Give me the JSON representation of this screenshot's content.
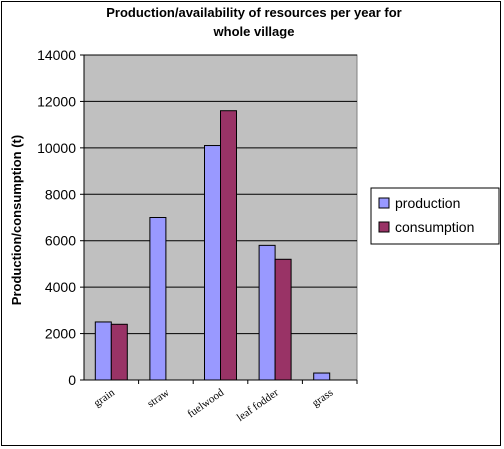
{
  "chart_data": {
    "type": "bar",
    "title_line1": "Production/availability of resources per year for",
    "title_line2": "whole village",
    "ylabel": "Production/consumption (t)",
    "xlabel": "",
    "categories": [
      "grain",
      "straw",
      "fuelwood",
      "leaf fodder",
      "grass"
    ],
    "series": [
      {
        "name": "production",
        "color": "#9999ff",
        "values": [
          2500,
          7000,
          10100,
          5800,
          300
        ]
      },
      {
        "name": "consumption",
        "color": "#993366",
        "values": [
          2400,
          0,
          11600,
          5200,
          0
        ]
      }
    ],
    "ylim": [
      0,
      14000
    ],
    "yticks": [
      0,
      2000,
      4000,
      6000,
      8000,
      10000,
      12000,
      14000
    ],
    "plot_background": "#c0c0c0",
    "grid": true,
    "legend_position": "right"
  }
}
